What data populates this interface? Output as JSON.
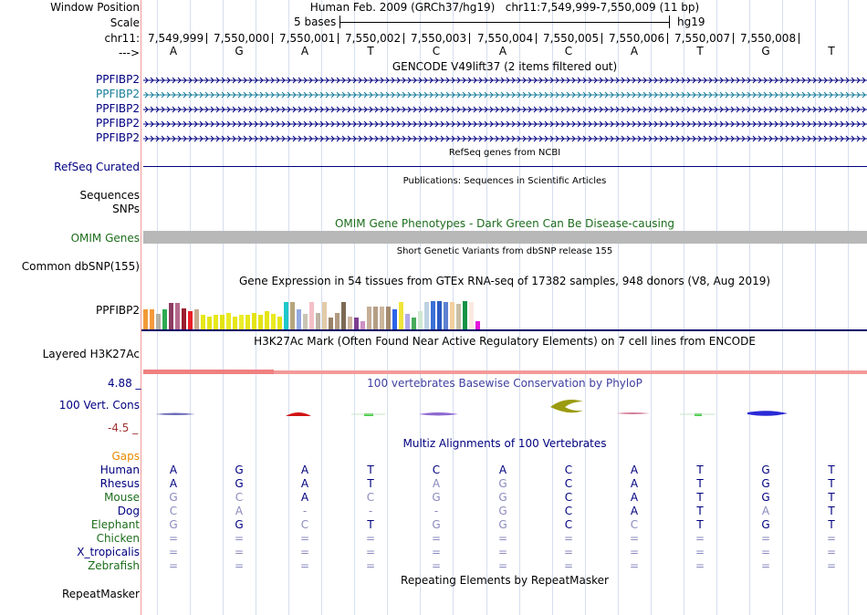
{
  "colors": {
    "blue_label": "#000080",
    "teal": "#177e9b",
    "omim_green": "#1c6d1c",
    "gaps_orange": "#e68a00",
    "conservation_red": "#a33333",
    "grid": "#c5d3ea",
    "divider": "#ee9c9c"
  },
  "header": {
    "window_position_label": "Window Position",
    "assembly_text": "Human Feb. 2009 (GRCh37/hg19)",
    "position_text": "chr11:7,549,999-7,550,009 (11 bp)",
    "scale_label": "Scale",
    "scale_bar_text": "5 bases",
    "scale_db": "hg19",
    "chrom_label": "chr11:",
    "strand_label": "--->",
    "coordinates": [
      "7,549,999",
      "7,550,000",
      "7,550,001",
      "7,550,002",
      "7,550,003",
      "7,550,004",
      "7,550,005",
      "7,550,006",
      "7,550,007",
      "7,550,008"
    ],
    "bases": [
      "A",
      "G",
      "A",
      "T",
      "C",
      "A",
      "C",
      "A",
      "T",
      "G",
      "T"
    ]
  },
  "tracks": {
    "gencode": {
      "title": "GENCODE V49lift37 (2 items filtered out)",
      "items": [
        "PPFIBP2",
        "PPFIBP2",
        "PPFIBP2",
        "PPFIBP2",
        "PPFIBP2"
      ]
    },
    "refseq": {
      "title": "RefSeq genes from NCBI",
      "label": "RefSeq Curated"
    },
    "publications": {
      "title": "Publications: Sequences in Scientific Articles",
      "label_sequences": "Sequences",
      "label_snps": "SNPs"
    },
    "omim": {
      "title": "OMIM Gene Phenotypes - Dark Green Can Be Disease-causing",
      "label": "OMIM Genes"
    },
    "dbsnp": {
      "title": "Short Genetic Variants from dbSNP release 155",
      "label": "Common dbSNP(155)"
    },
    "gtex": {
      "title": "Gene Expression in 54 tissues from GTEx RNA-seq of 17382 samples, 948 donors (V8, Aug 2019)",
      "label": "PPFIBP2",
      "bars": [
        {
          "v": 0.73,
          "c": "#f29b38"
        },
        {
          "v": 0.73,
          "c": "#f59a3b"
        },
        {
          "v": 0.57,
          "c": "#b3b1a5"
        },
        {
          "v": 0.73,
          "c": "#2eab52"
        },
        {
          "v": 0.97,
          "c": "#8e3c62"
        },
        {
          "v": 0.97,
          "c": "#b56a8d"
        },
        {
          "v": 0.76,
          "c": "#9b1f2e"
        },
        {
          "v": 0.67,
          "c": "#ea1f27"
        },
        {
          "v": 0.73,
          "c": "#c6a98e"
        },
        {
          "v": 0.54,
          "c": "#e6e619"
        },
        {
          "v": 0.47,
          "c": "#e5e517"
        },
        {
          "v": 0.54,
          "c": "#e8e81e"
        },
        {
          "v": 0.54,
          "c": "#e3e313"
        },
        {
          "v": 0.6,
          "c": "#eaea24"
        },
        {
          "v": 0.47,
          "c": "#e6e61a"
        },
        {
          "v": 0.54,
          "c": "#eded2c"
        },
        {
          "v": 0.54,
          "c": "#e6e61b"
        },
        {
          "v": 0.6,
          "c": "#e4e415"
        },
        {
          "v": 0.54,
          "c": "#e3e314"
        },
        {
          "v": 0.67,
          "c": "#e5e518"
        },
        {
          "v": 0.57,
          "c": "#eaea22"
        },
        {
          "v": 0.47,
          "c": "#e5e517"
        },
        {
          "v": 1.0,
          "c": "#1ec8c9"
        },
        {
          "v": 1.0,
          "c": "#b6a67e"
        },
        {
          "v": 0.73,
          "c": "#95a9e0"
        },
        {
          "v": 0.57,
          "c": "#c9c4b3"
        },
        {
          "v": 1.0,
          "c": "#f4bfc6"
        },
        {
          "v": 0.6,
          "c": "#bdb3a3"
        },
        {
          "v": 1.0,
          "c": "#e2cba8"
        },
        {
          "v": 0.43,
          "c": "#9a8268"
        },
        {
          "v": 0.6,
          "c": "#b09a80"
        },
        {
          "v": 1.0,
          "c": "#7d6a54"
        },
        {
          "v": 0.47,
          "c": "#cfb6a0"
        },
        {
          "v": 0.43,
          "c": "#7d3f91"
        },
        {
          "v": 0.3,
          "c": "#cf91c5"
        },
        {
          "v": 0.83,
          "c": "#c4ae96"
        },
        {
          "v": 0.83,
          "c": "#b59e85"
        },
        {
          "v": 0.83,
          "c": "#cbb59c"
        },
        {
          "v": 0.83,
          "c": "#a38a6f"
        },
        {
          "v": 0.73,
          "c": "#2c63e9"
        },
        {
          "v": 1.0,
          "c": "#f0e43a"
        },
        {
          "v": 0.57,
          "c": "#b0a9e8"
        },
        {
          "v": 0.43,
          "c": "#46ad5b"
        },
        {
          "v": 0.67,
          "c": "#cfe8d2"
        },
        {
          "v": 1.0,
          "c": "#bdd2e3"
        },
        {
          "v": 1.03,
          "c": "#3b70d6"
        },
        {
          "v": 1.03,
          "c": "#2b5bc2"
        },
        {
          "v": 1.0,
          "c": "#5e82d1"
        },
        {
          "v": 1.0,
          "c": "#f2d09f"
        },
        {
          "v": 0.93,
          "c": "#c7bfa6"
        },
        {
          "v": 1.03,
          "c": "#139346"
        },
        {
          "v": 1.0,
          "c": "#fbe9e0"
        },
        {
          "v": 0.3,
          "c": "#e316dd"
        }
      ]
    },
    "h3k27ac": {
      "title": "H3K27Ac Mark (Often Found Near Active Regulatory Elements) on 7 cell lines from ENCODE",
      "label": "Layered H3K27Ac"
    },
    "phylop": {
      "title": "100 vertebrates Basewise Conservation by PhyloP",
      "label": "100 Vert. Cons",
      "max_label": "4.88 _",
      "min_label": "-4.5 _"
    },
    "multiz": {
      "title": "Multiz Alignments of 100 Vertebrates",
      "gaps_label": "Gaps",
      "species": [
        {
          "name": "Human",
          "color": "#000080",
          "bases": [
            "A",
            "G",
            "A",
            "T",
            "C",
            "A",
            "C",
            "A",
            "T",
            "G",
            "T"
          ]
        },
        {
          "name": "Rhesus",
          "color": "#000080",
          "bases": [
            "A",
            "G",
            "A",
            "T",
            "A",
            "G",
            "C",
            "A",
            "T",
            "G",
            "T"
          ]
        },
        {
          "name": "Mouse",
          "color": "#1c6d1c",
          "bases": [
            "G",
            "C",
            "A",
            "C",
            "G",
            "G",
            "C",
            "A",
            "T",
            "G",
            "T"
          ]
        },
        {
          "name": "Dog",
          "color": "#000080",
          "bases": [
            "C",
            "A",
            "-",
            "-",
            "-",
            "G",
            "C",
            "A",
            "T",
            "A",
            "T"
          ]
        },
        {
          "name": "Elephant",
          "color": "#1c6d1c",
          "bases": [
            "G",
            "G",
            "C",
            "T",
            "G",
            "G",
            "C",
            "C",
            "T",
            "G",
            "T"
          ]
        },
        {
          "name": "Chicken",
          "color": "#1c6d1c",
          "bases": [
            "=",
            "=",
            "=",
            "=",
            "=",
            "=",
            "=",
            "=",
            "=",
            "=",
            "="
          ]
        },
        {
          "name": "X_tropicalis",
          "color": "#000080",
          "bases": [
            "=",
            "=",
            "=",
            "=",
            "=",
            "=",
            "=",
            "=",
            "=",
            "=",
            "="
          ]
        },
        {
          "name": "Zebrafish",
          "color": "#1c6d1c",
          "bases": [
            "=",
            "=",
            "=",
            "=",
            "=",
            "=",
            "=",
            "=",
            "=",
            "=",
            "="
          ]
        }
      ]
    },
    "repeatmasker": {
      "title": "Repeating Elements by RepeatMasker",
      "label": "RepeatMasker"
    }
  }
}
